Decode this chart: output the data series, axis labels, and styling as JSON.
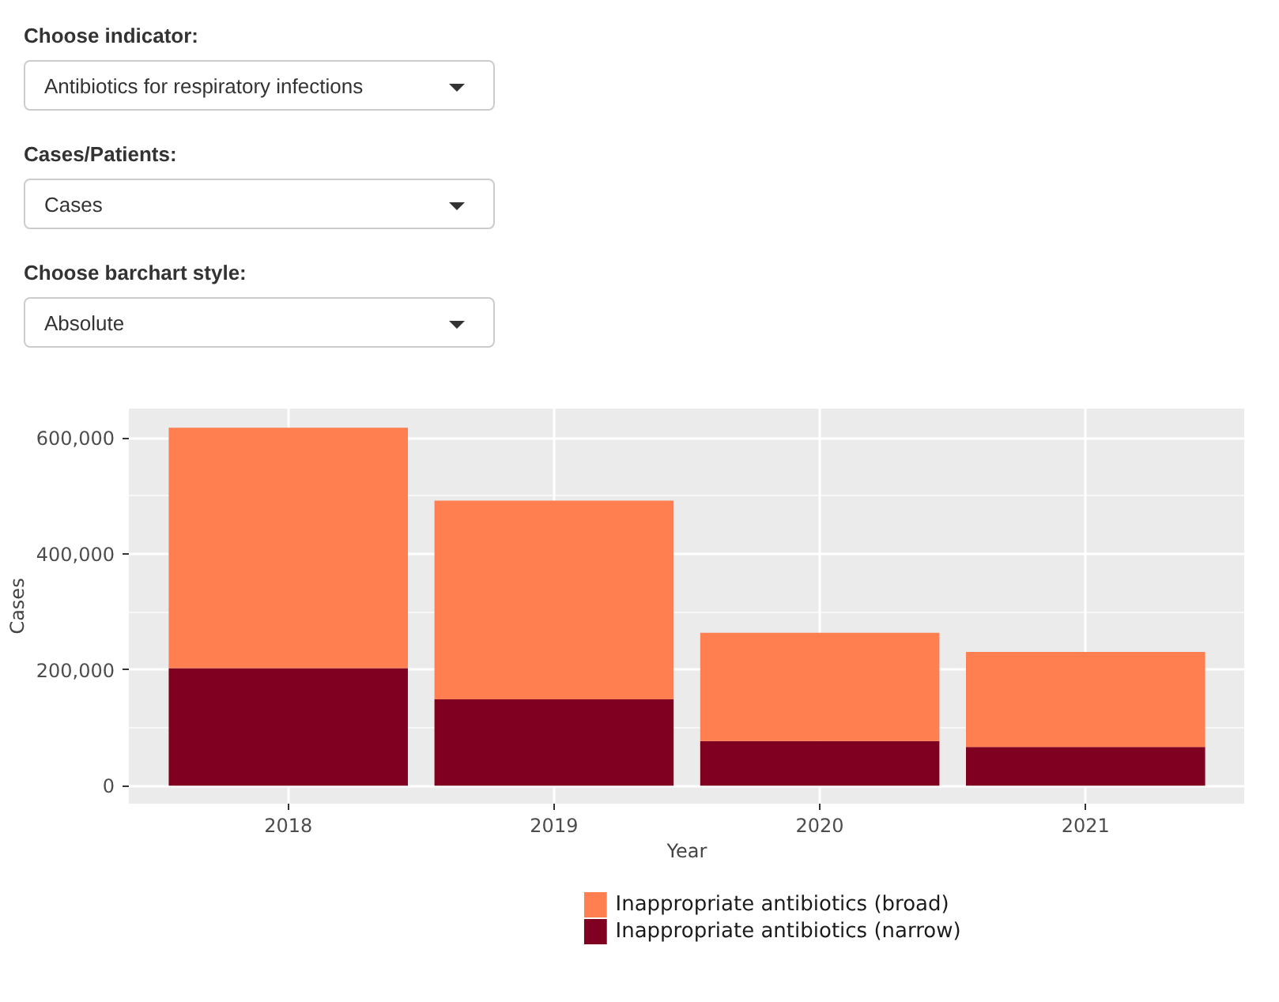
{
  "chart_data": {
    "type": "bar",
    "stacked": true,
    "xlabel": "Year",
    "ylabel": "Cases",
    "categories": [
      "2018",
      "2019",
      "2020",
      "2021"
    ],
    "series": [
      {
        "name": "Inappropriate antibiotics (narrow)",
        "color": "#7f0020",
        "values": [
          203000,
          149000,
          77000,
          67000
        ]
      },
      {
        "name": "Inappropriate antibiotics (broad)",
        "color": "#ff7f50",
        "values": [
          415000,
          343000,
          187000,
          164000
        ]
      }
    ],
    "ylim": [
      -31000,
      651000
    ],
    "yticks": [
      {
        "value": 0,
        "label": "0"
      },
      {
        "value": 200000,
        "label": "200,000"
      },
      {
        "value": 400000,
        "label": "400,000"
      },
      {
        "value": 600000,
        "label": "600,000"
      }
    ],
    "grid": true,
    "legend": "bottom",
    "annotations": [
      "Choose indicator:",
      "Antibiotics for respiratory infections",
      "Cases/Patients:",
      "Cases",
      "Choose barchart style:",
      "Absolute"
    ]
  }
}
